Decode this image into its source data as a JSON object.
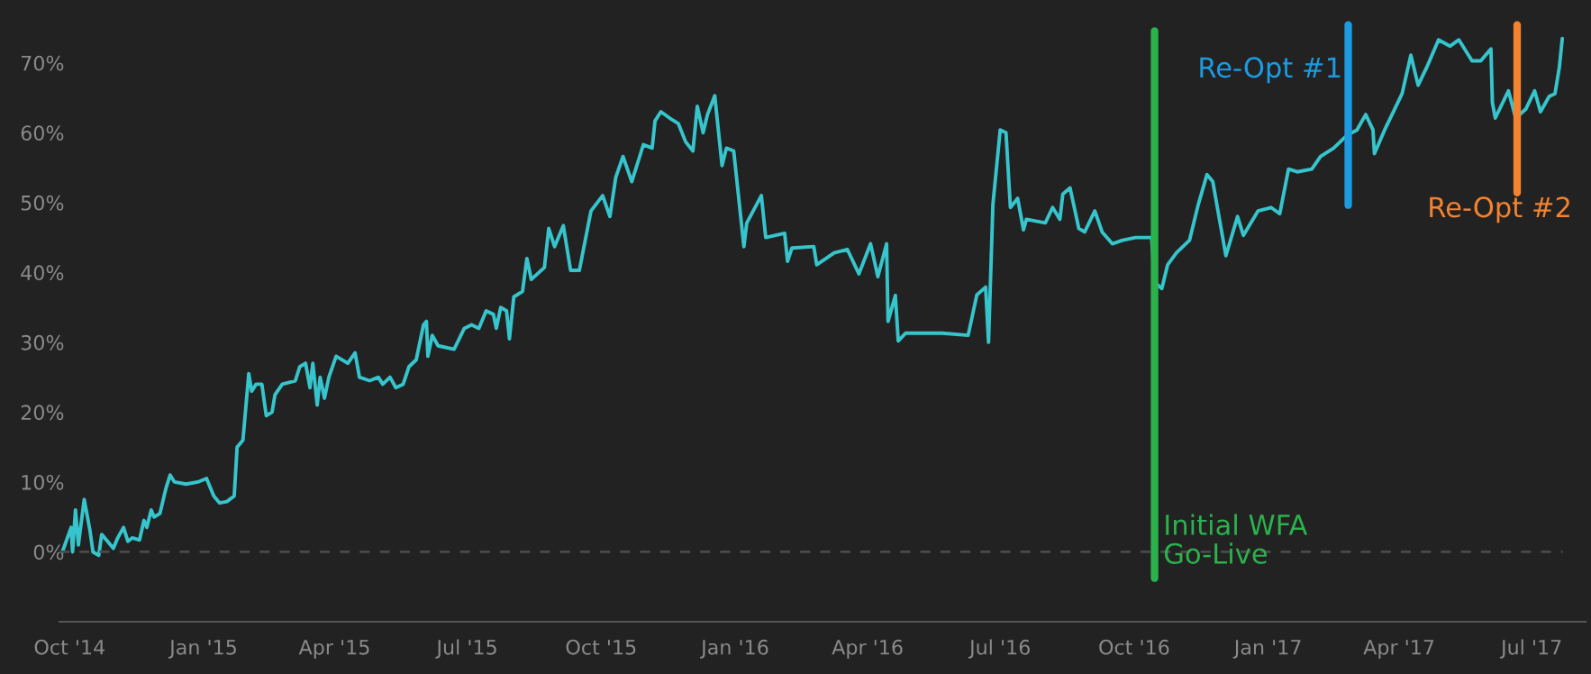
{
  "chart_data": {
    "type": "line",
    "x": [
      "2014-09-26",
      "2014-10-02",
      "2014-10-03",
      "2014-10-05",
      "2014-10-07",
      "2014-10-11",
      "2014-10-15",
      "2014-10-17",
      "2014-10-21",
      "2014-10-23",
      "2014-10-27",
      "2014-10-31",
      "2014-11-03",
      "2014-11-07",
      "2014-11-10",
      "2014-11-13",
      "2014-11-18",
      "2014-11-21",
      "2014-11-23",
      "2014-11-26",
      "2014-11-28",
      "2014-12-02",
      "2014-12-06",
      "2014-12-09",
      "2014-12-12",
      "2014-12-20",
      "2014-12-28",
      "2015-01-03",
      "2015-01-06",
      "2015-01-08",
      "2015-01-12",
      "2015-01-17",
      "2015-01-22",
      "2015-01-24",
      "2015-01-28",
      "2015-02-01",
      "2015-02-03",
      "2015-02-06",
      "2015-02-10",
      "2015-02-13",
      "2015-02-17",
      "2015-02-19",
      "2015-02-24",
      "2015-03-05",
      "2015-03-08",
      "2015-03-12",
      "2015-03-15",
      "2015-03-17",
      "2015-03-20",
      "2015-03-22",
      "2015-03-25",
      "2015-03-28",
      "2015-04-02",
      "2015-04-10",
      "2015-04-15",
      "2015-04-18",
      "2015-04-25",
      "2015-05-01",
      "2015-05-04",
      "2015-05-09",
      "2015-05-13",
      "2015-05-18",
      "2015-05-22",
      "2015-05-27",
      "2015-06-01",
      "2015-06-03",
      "2015-06-04",
      "2015-06-07",
      "2015-06-11",
      "2015-06-22",
      "2015-06-29",
      "2015-07-04",
      "2015-07-09",
      "2015-07-14",
      "2015-07-19",
      "2015-07-21",
      "2015-07-24",
      "2015-07-28",
      "2015-07-30",
      "2015-08-02",
      "2015-08-08",
      "2015-08-11",
      "2015-08-14",
      "2015-08-23",
      "2015-08-26",
      "2015-08-30",
      "2015-09-05",
      "2015-09-10",
      "2015-09-16",
      "2015-09-24",
      "2015-10-02",
      "2015-10-07",
      "2015-10-11",
      "2015-10-16",
      "2015-10-22",
      "2015-10-30",
      "2015-11-05",
      "2015-11-07",
      "2015-11-11",
      "2015-11-17",
      "2015-11-23",
      "2015-11-28",
      "2015-12-03",
      "2015-12-06",
      "2015-12-10",
      "2015-12-13",
      "2015-12-18",
      "2015-12-23",
      "2015-12-26",
      "2015-12-31",
      "2016-01-07",
      "2016-01-09",
      "2016-01-19",
      "2016-01-22",
      "2016-02-04",
      "2016-02-06",
      "2016-02-09",
      "2016-02-24",
      "2016-02-26",
      "2016-03-09",
      "2016-03-18",
      "2016-03-26",
      "2016-04-03",
      "2016-04-08",
      "2016-04-14",
      "2016-04-15",
      "2016-04-20",
      "2016-04-22",
      "2016-04-27",
      "2016-05-22",
      "2016-06-09",
      "2016-06-15",
      "2016-06-21",
      "2016-06-23",
      "2016-06-26",
      "2016-07-01",
      "2016-07-05",
      "2016-07-08",
      "2016-07-13",
      "2016-07-17",
      "2016-07-19",
      "2016-08-01",
      "2016-08-06",
      "2016-08-11",
      "2016-08-13",
      "2016-08-18",
      "2016-08-24",
      "2016-08-28",
      "2016-09-04",
      "2016-09-09",
      "2016-09-16",
      "2016-09-23",
      "2016-10-02",
      "2016-10-13",
      "2016-10-15",
      "2016-10-20",
      "2016-10-24",
      "2016-10-30",
      "2016-11-08",
      "2016-11-14",
      "2016-11-20",
      "2016-11-24",
      "2016-12-03",
      "2016-12-11",
      "2016-12-15",
      "2016-12-25",
      "2017-01-03",
      "2017-01-09",
      "2017-01-15",
      "2017-01-21",
      "2017-01-31",
      "2017-02-06",
      "2017-02-15",
      "2017-02-24",
      "2017-03-03",
      "2017-03-09",
      "2017-03-14",
      "2017-03-15",
      "2017-03-22",
      "2017-03-28",
      "2017-04-03",
      "2017-04-09",
      "2017-04-14",
      "2017-04-20",
      "2017-04-28",
      "2017-05-06",
      "2017-05-12",
      "2017-05-21",
      "2017-05-27",
      "2017-06-03",
      "2017-06-04",
      "2017-06-06",
      "2017-06-15",
      "2017-06-20",
      "2017-06-27",
      "2017-07-03",
      "2017-07-07",
      "2017-07-13",
      "2017-07-17",
      "2017-07-20",
      "2017-07-22"
    ],
    "series": [
      {
        "color": "#36c5cc",
        "values": [
          0,
          3.5,
          0,
          6,
          1,
          7.5,
          3,
          0,
          -0.5,
          2.5,
          1.5,
          0.5,
          2,
          3.5,
          1.5,
          2,
          1.7,
          4.5,
          3.5,
          6,
          5,
          5.5,
          9,
          11,
          10,
          9.7,
          10,
          10.5,
          9,
          8,
          7,
          7.2,
          8,
          15,
          16,
          25.5,
          23,
          24,
          24,
          19.5,
          20,
          22.5,
          24,
          24.5,
          26.5,
          27,
          23.5,
          27,
          21,
          25,
          22,
          25,
          28,
          27,
          28.5,
          25,
          24.5,
          25,
          24,
          25,
          23.5,
          24,
          26.5,
          27.5,
          32.5,
          33,
          28,
          31,
          29.5,
          29,
          32,
          32.5,
          32,
          34.5,
          34,
          32,
          35,
          34.5,
          30.5,
          36.5,
          37.3,
          42,
          39,
          40.7,
          46.3,
          43.7,
          46.7,
          40.3,
          40.3,
          48.8,
          51,
          48,
          53.6,
          56.6,
          53,
          58.3,
          57.8,
          61.7,
          63,
          62.1,
          61.3,
          58.7,
          57.4,
          63.8,
          60,
          62.6,
          65.3,
          55.3,
          57.8,
          57.4,
          43.7,
          47.1,
          51,
          45,
          45.6,
          41.6,
          43.5,
          43.7,
          41.1,
          42.8,
          43.3,
          39.8,
          44.1,
          39.4,
          44.1,
          33,
          36.7,
          30.2,
          31.3,
          31.3,
          31,
          36.8,
          37.9,
          30,
          49.7,
          60.4,
          60,
          49.3,
          50.6,
          46.1,
          47.6,
          47.1,
          49.3,
          47.6,
          51.2,
          52.1,
          46.3,
          45.8,
          48.8,
          45.8,
          44.1,
          44.6,
          45,
          45,
          38.6,
          37.7,
          41.1,
          42.8,
          44.6,
          49.7,
          54,
          53,
          42.4,
          48,
          45.3,
          48.8,
          49.3,
          48.4,
          54.8,
          54.4,
          54.8,
          56.6,
          57.8,
          59.6,
          60.4,
          62.6,
          60.4,
          57,
          60.4,
          63,
          65.6,
          71.1,
          66.8,
          69.4,
          73.3,
          72.4,
          73.3,
          70.3,
          70.3,
          72,
          64.3,
          62.1,
          66,
          62.1,
          63.4,
          66,
          63,
          65.2,
          65.6,
          69.4,
          73.5
        ]
      }
    ],
    "xlim": [
      "2014-09-24",
      "2017-08-07"
    ],
    "xticks": [
      {
        "value": "2014-10-01",
        "label": "Oct '14"
      },
      {
        "value": "2015-01-01",
        "label": "Jan '15"
      },
      {
        "value": "2015-04-01",
        "label": "Apr '15"
      },
      {
        "value": "2015-07-01",
        "label": "Jul '15"
      },
      {
        "value": "2015-10-01",
        "label": "Oct '15"
      },
      {
        "value": "2016-01-01",
        "label": "Jan '16"
      },
      {
        "value": "2016-04-01",
        "label": "Apr '16"
      },
      {
        "value": "2016-07-01",
        "label": "Jul '16"
      },
      {
        "value": "2016-10-01",
        "label": "Oct '16"
      },
      {
        "value": "2017-01-01",
        "label": "Jan '17"
      },
      {
        "value": "2017-04-01",
        "label": "Apr '17"
      },
      {
        "value": "2017-07-01",
        "label": "Jul '17"
      }
    ],
    "ylim": [
      -10,
      79
    ],
    "yticks": [
      {
        "value": 0,
        "label": "0%"
      },
      {
        "value": 10,
        "label": "10%"
      },
      {
        "value": 20,
        "label": "20%"
      },
      {
        "value": 30,
        "label": "30%"
      },
      {
        "value": 40,
        "label": "40%"
      },
      {
        "value": 50,
        "label": "50%"
      },
      {
        "value": 60,
        "label": "60%"
      },
      {
        "value": 70,
        "label": "70%"
      }
    ],
    "ref_lines": [
      {
        "axis": "y",
        "value": 0,
        "color": "#4a4a4a",
        "line_style": "dashed"
      },
      {
        "axis": "x",
        "value": "2016-10-15",
        "label": "Initial WFA\nGo-Live",
        "color": "#2bb24c"
      },
      {
        "axis": "x",
        "value": "2017-02-25",
        "label": "Re-Opt #1",
        "color": "#1c9be0"
      },
      {
        "axis": "x",
        "value": "2017-06-21",
        "label": "Re-Opt #2",
        "color": "#f5822f"
      }
    ],
    "grid": false,
    "marker": "none",
    "line_style": "solid"
  }
}
